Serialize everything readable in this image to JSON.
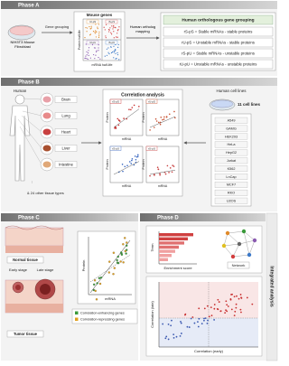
{
  "phase_a": {
    "header": "Phase A",
    "cell": "NIH3T3 Mouse Fibroblast",
    "arrow_grouping": "Gene grouping",
    "mouse_box": {
      "title": "Mouse genes",
      "y_label": "Protein half-life",
      "x_label": "mRNA half-life",
      "quadrants": [
        "rU-pS",
        "rS-pS",
        "rU-pU",
        "rS-pU"
      ]
    },
    "arrow_mapping": "Human ortholog mapping",
    "grouping": {
      "title": "Human orthologous gene grouping",
      "rows": [
        "rS-pS = Stable mRNAs - stable proteins",
        "rU-pS = Unstable mRNAs - stable proteins",
        "rS-pU = Stable mRNAs - unstable proteins",
        "rU-pU = Unstable mRNAs - unstable proteins"
      ]
    }
  },
  "phase_b": {
    "header": "Phase B",
    "human": "Human",
    "tissues": [
      "Brain",
      "Lung",
      "Heart",
      "Liver",
      "Intestine"
    ],
    "other_tissues": "& 24 other tissue types",
    "correlation": {
      "title": "Correlation analysis",
      "y_label": "Protein",
      "x_label": "mRNA",
      "panels": [
        "rS-pS",
        "rU-pS",
        "rS-pU",
        "rU-pU"
      ]
    },
    "cell_lines": {
      "title": "Human cell lines",
      "count": "11 cell lines",
      "lines": [
        "A549",
        "GAMG",
        "HEK293",
        "HeLa",
        "HepG2",
        "Jurkat",
        "K562",
        "LnCap",
        "MCF7",
        "RKO",
        "U2OS"
      ]
    }
  },
  "phase_c": {
    "header": "Phase C",
    "normal": "Normal tissue",
    "early": "Early stage",
    "late": "Late stage",
    "tumor": "Tumor tissue",
    "y_label": "Protein",
    "x_label": "mRNA",
    "legend": [
      "Correlation-enhancing genes",
      "Correlation-repressing genes"
    ]
  },
  "phase_d": {
    "header": "Phase D",
    "term": "Term",
    "enrichment": "Enrichment score",
    "network": "Network",
    "y_label": "Correlation (late)",
    "x_label": "Correlation (early)"
  },
  "side_label": "Integrated analysis"
}
